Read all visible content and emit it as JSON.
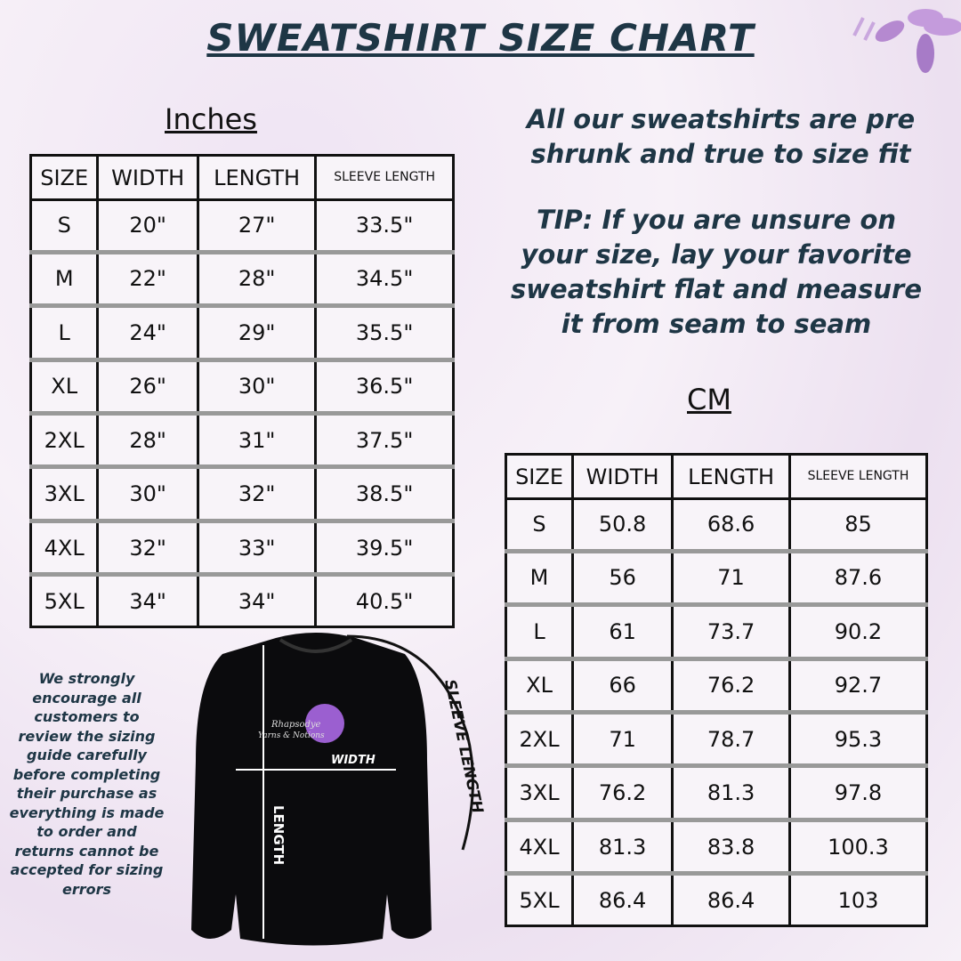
{
  "title": "SWEATSHIRT SIZE CHART",
  "inches": {
    "title": "Inches",
    "header": [
      "SIZE",
      "WIDTH",
      "LENGTH",
      "SLEEVE LENGTH"
    ],
    "rows": [
      [
        "S",
        "20\"",
        "27\"",
        "33.5\""
      ],
      [
        "M",
        "22\"",
        "28\"",
        "34.5\""
      ],
      [
        "L",
        "24\"",
        "29\"",
        "35.5\""
      ],
      [
        "XL",
        "26\"",
        "30\"",
        "36.5\""
      ],
      [
        "2XL",
        "28\"",
        "31\"",
        "37.5\""
      ],
      [
        "3XL",
        "30\"",
        "32\"",
        "38.5\""
      ],
      [
        "4XL",
        "32\"",
        "33\"",
        "39.5\""
      ],
      [
        "5XL",
        "34\"",
        "34\"",
        "40.5\""
      ]
    ]
  },
  "cm": {
    "title": "CM",
    "header": [
      "SIZE",
      "WIDTH",
      "LENGTH",
      "SLEEVE LENGTH"
    ],
    "rows": [
      [
        "S",
        "50.8",
        "68.6",
        "85"
      ],
      [
        "M",
        "56",
        "71",
        "87.6"
      ],
      [
        "L",
        "61",
        "73.7",
        "90.2"
      ],
      [
        "XL",
        "66",
        "76.2",
        "92.7"
      ],
      [
        "2XL",
        "71",
        "78.7",
        "95.3"
      ],
      [
        "3XL",
        "76.2",
        "81.3",
        "97.8"
      ],
      [
        "4XL",
        "81.3",
        "83.8",
        "100.3"
      ],
      [
        "5XL",
        "86.4",
        "86.4",
        "103"
      ]
    ]
  },
  "fit_note": "All our sweatshirts are pre shrunk and true to size fit",
  "tip": "TIP: If you are unsure on your size, lay your favorite sweatshirt flat and measure it from seam to seam",
  "disclaimer": "We strongly encourage all customers to review the sizing guide carefully before completing their purchase as everything is made to order and returns cannot be accepted for sizing errors",
  "diagram": {
    "width": "WIDTH",
    "length": "LENGTH",
    "sleeve_length": "SLEEVE LENGTH",
    "logo_name": "Rhapsodye",
    "logo_sub": "Yarns & Notions"
  }
}
